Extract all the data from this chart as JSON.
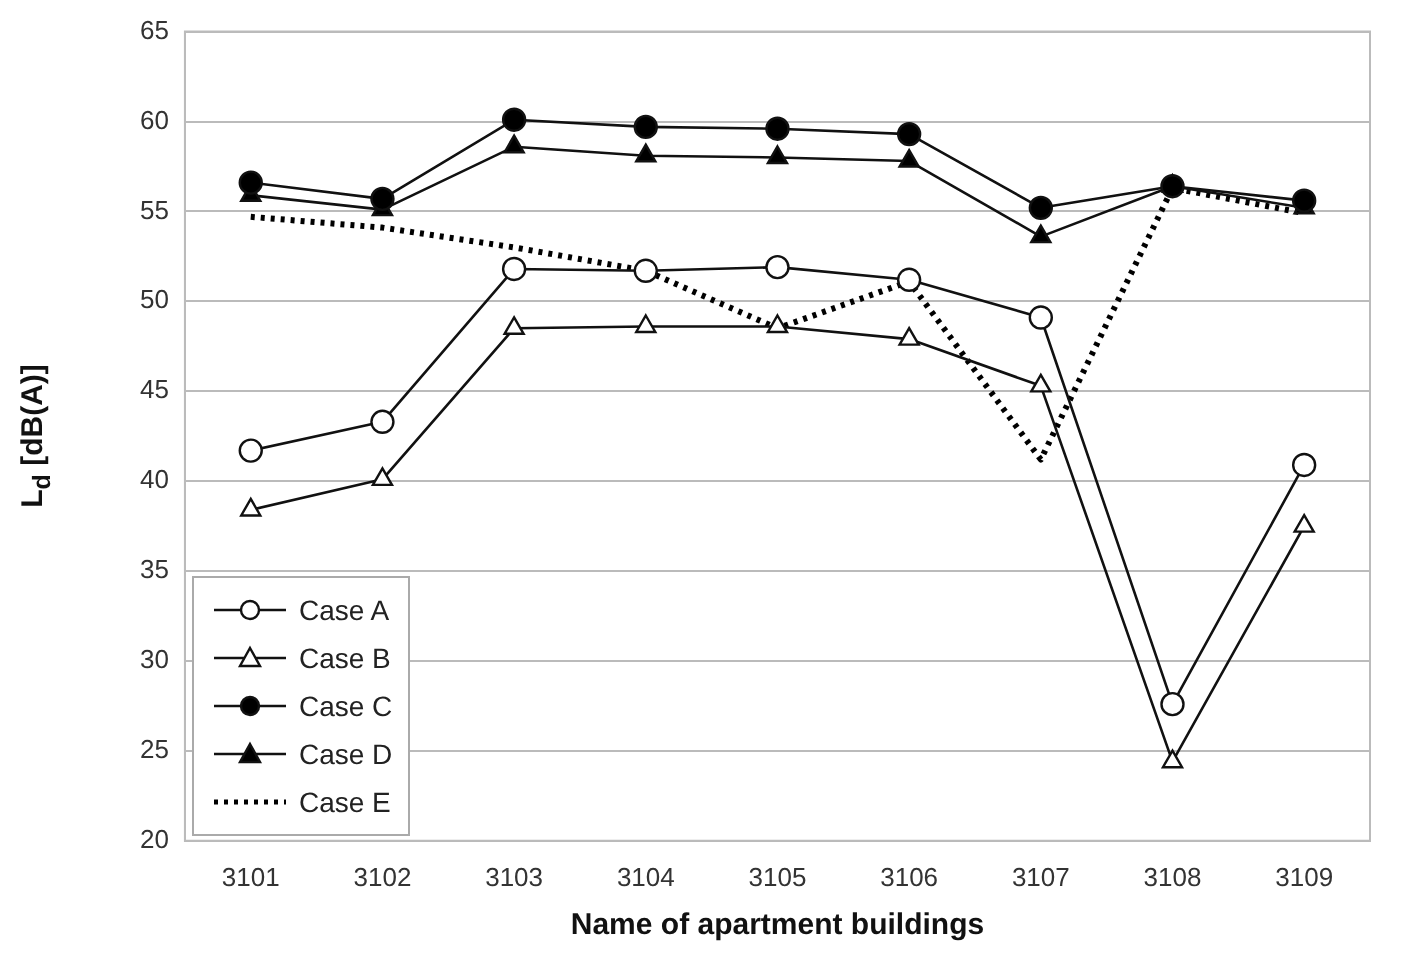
{
  "chart_data": {
    "type": "line",
    "xlabel": "Name of apartment buildings",
    "ylabel": "L$_{d}$ [dB(A)]",
    "categories": [
      "3101",
      "3102",
      "3103",
      "3104",
      "3105",
      "3106",
      "3107",
      "3108",
      "3109"
    ],
    "series": [
      {
        "name": "Case A",
        "color": "#ffffff",
        "marker": "circle",
        "line_style": "solid",
        "values": [
          41.7,
          43.3,
          51.8,
          51.7,
          51.9,
          51.2,
          49.1,
          27.6,
          40.9
        ]
      },
      {
        "name": "Case B",
        "color": "#ffffff",
        "marker": "triangle",
        "line_style": "solid",
        "values": [
          38.4,
          40.1,
          48.5,
          48.6,
          48.6,
          47.9,
          45.3,
          24.4,
          37.5
        ]
      },
      {
        "name": "Case C",
        "color": "#000000",
        "marker": "circle",
        "line_style": "solid",
        "values": [
          56.6,
          55.7,
          60.1,
          59.7,
          59.6,
          59.3,
          55.2,
          56.4,
          55.6
        ]
      },
      {
        "name": "Case D",
        "color": "#000000",
        "marker": "triangle",
        "line_style": "solid",
        "values": [
          55.9,
          55.1,
          58.6,
          58.1,
          58.0,
          57.8,
          53.6,
          56.4,
          55.2
        ]
      },
      {
        "name": "Case E",
        "color": "#000000",
        "marker": "none",
        "line_style": "dotted",
        "values": [
          54.7,
          54.1,
          53.0,
          51.7,
          48.5,
          51.1,
          41.2,
          56.3,
          54.9
        ]
      }
    ],
    "ylim": [
      20,
      65
    ],
    "yticks": [
      20,
      25,
      30,
      35,
      40,
      45,
      50,
      55,
      60,
      65
    ],
    "grid": "y",
    "legend": "bottom left"
  }
}
